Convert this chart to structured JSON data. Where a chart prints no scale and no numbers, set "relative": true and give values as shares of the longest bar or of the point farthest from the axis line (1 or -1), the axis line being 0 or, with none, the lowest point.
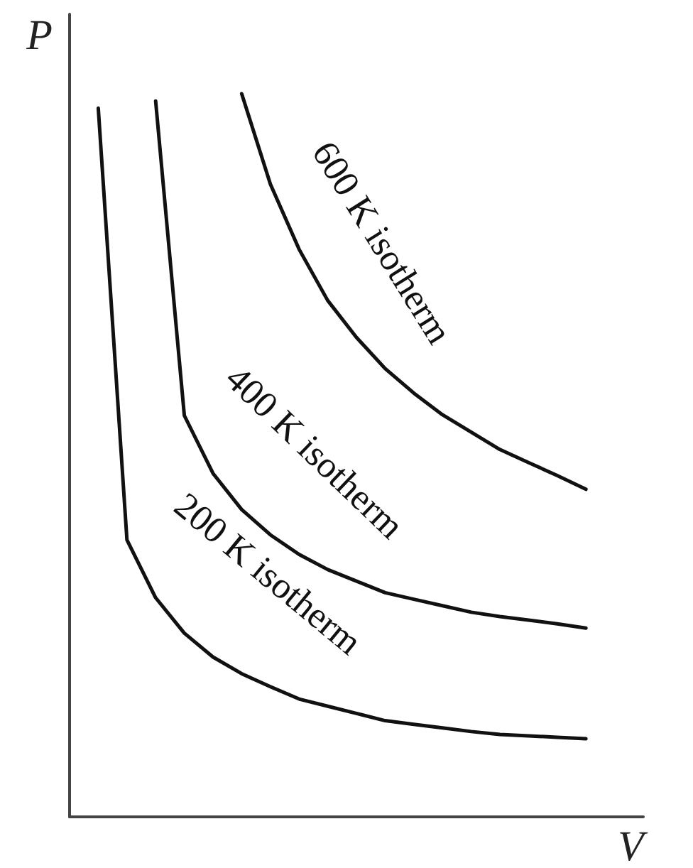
{
  "chart_data": {
    "type": "line",
    "xlabel": "V",
    "ylabel": "P",
    "relative": true,
    "marker": "none",
    "line_style": "solid",
    "categories": [
      null,
      null,
      null,
      null,
      null,
      null,
      null,
      null,
      null,
      null,
      null,
      null,
      null,
      null,
      null,
      null,
      null,
      null,
      null,
      null,
      null
    ],
    "series": [
      {
        "name": "600 K isotherm",
        "color": "#111111",
        "values": [
          null,
          null,
          null,
          null,
          null,
          null,
          1,
          0.875,
          0.785,
          0.714,
          0.663,
          0.62,
          0.586,
          0.556,
          0.532,
          0.508,
          0.49,
          0.472,
          0.453,
          null,
          null
        ]
      },
      {
        "name": "400 K isotherm",
        "color": "#111111",
        "values": [
          null,
          null,
          null,
          0.99,
          0.555,
          0.475,
          0.425,
          0.39,
          0.363,
          0.342,
          0.326,
          0.31,
          0.301,
          0.292,
          0.283,
          0.277,
          0.272,
          0.267,
          0.261,
          null,
          null
        ]
      },
      {
        "name": "200 K isotherm",
        "color": "#111111",
        "values": [
          null,
          0.98,
          0.383,
          0.303,
          0.254,
          0.221,
          0.198,
          0.18,
          0.163,
          0.153,
          0.143,
          0.133,
          0.128,
          0.123,
          0.118,
          0.114,
          0.112,
          0.11,
          0.108,
          null,
          null
        ]
      }
    ]
  }
}
